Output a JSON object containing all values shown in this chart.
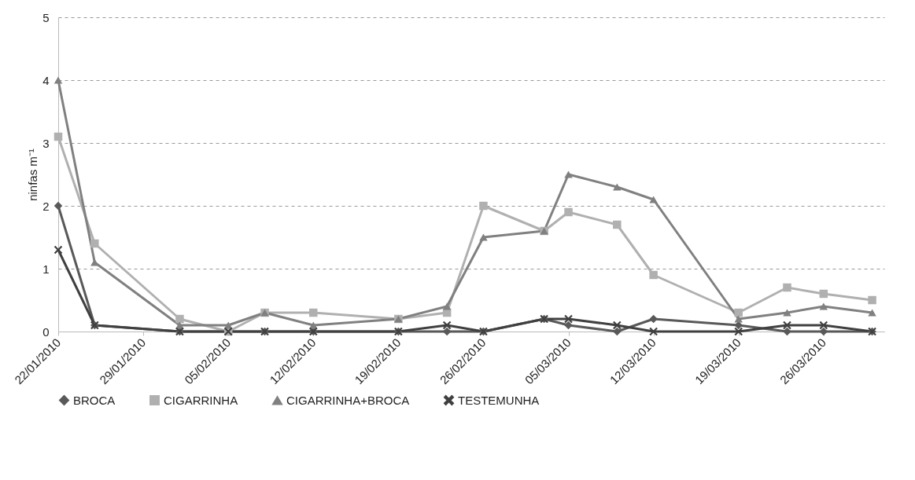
{
  "chart_data": {
    "type": "line",
    "ylabel": "ninfas m⁻¹",
    "x": [
      "2010-01-22",
      "2010-01-25",
      "2010-02-01",
      "2010-02-05",
      "2010-02-08",
      "2010-02-12",
      "2010-02-19",
      "2010-02-23",
      "2010-02-26",
      "2010-03-03",
      "2010-03-05",
      "2010-03-09",
      "2010-03-12",
      "2010-03-19",
      "2010-03-23",
      "2010-03-26",
      "2010-03-30"
    ],
    "series": [
      {
        "name": "BROCA",
        "color": "#595959",
        "marker": "diamond",
        "values": [
          2,
          0.1,
          0,
          0,
          0,
          0,
          0,
          0,
          0,
          0.2,
          0.1,
          0,
          0.2,
          0.1,
          0,
          0,
          0
        ]
      },
      {
        "name": "CIGARRINHA",
        "color": "#b0b0b0",
        "marker": "square",
        "values": [
          3.1,
          1.4,
          0.2,
          0,
          0.3,
          0.3,
          0.2,
          0.3,
          2,
          1.6,
          1.9,
          1.7,
          0.9,
          0.3,
          0.7,
          0.6,
          0.5
        ]
      },
      {
        "name": "CIGARRINHA+BROCA",
        "color": "#808080",
        "marker": "triangle",
        "values": [
          4,
          1.1,
          0.1,
          0.1,
          0.3,
          0.1,
          0.2,
          0.4,
          1.5,
          1.6,
          2.5,
          2.3,
          2.1,
          0.2,
          0.3,
          0.4,
          0.3
        ]
      },
      {
        "name": "TESTEMUNHA",
        "color": "#404040",
        "marker": "cross",
        "values": [
          1.3,
          0.1,
          0,
          0,
          0,
          0,
          0,
          0.1,
          0,
          0.2,
          0.2,
          0.1,
          0,
          0,
          0.1,
          0.1,
          0
        ]
      }
    ],
    "xlim": [
      "2010-01-22",
      "2010-03-31"
    ],
    "xticks": [
      {
        "value": "2010-01-22",
        "label": "22/01/2010"
      },
      {
        "value": "2010-01-29",
        "label": "29/01/2010"
      },
      {
        "value": "2010-02-05",
        "label": "05/02/2010"
      },
      {
        "value": "2010-02-12",
        "label": "12/02/2010"
      },
      {
        "value": "2010-02-19",
        "label": "19/02/2010"
      },
      {
        "value": "2010-02-26",
        "label": "26/02/2010"
      },
      {
        "value": "2010-03-05",
        "label": "05/03/2010"
      },
      {
        "value": "2010-03-12",
        "label": "12/03/2010"
      },
      {
        "value": "2010-03-19",
        "label": "19/03/2010"
      },
      {
        "value": "2010-03-26",
        "label": "26/03/2010"
      }
    ],
    "ylim": [
      0,
      5
    ],
    "yticks": [
      0,
      1,
      2,
      3,
      4,
      5
    ],
    "grid": "y",
    "legend": "bottom",
    "line_style": "solid"
  }
}
